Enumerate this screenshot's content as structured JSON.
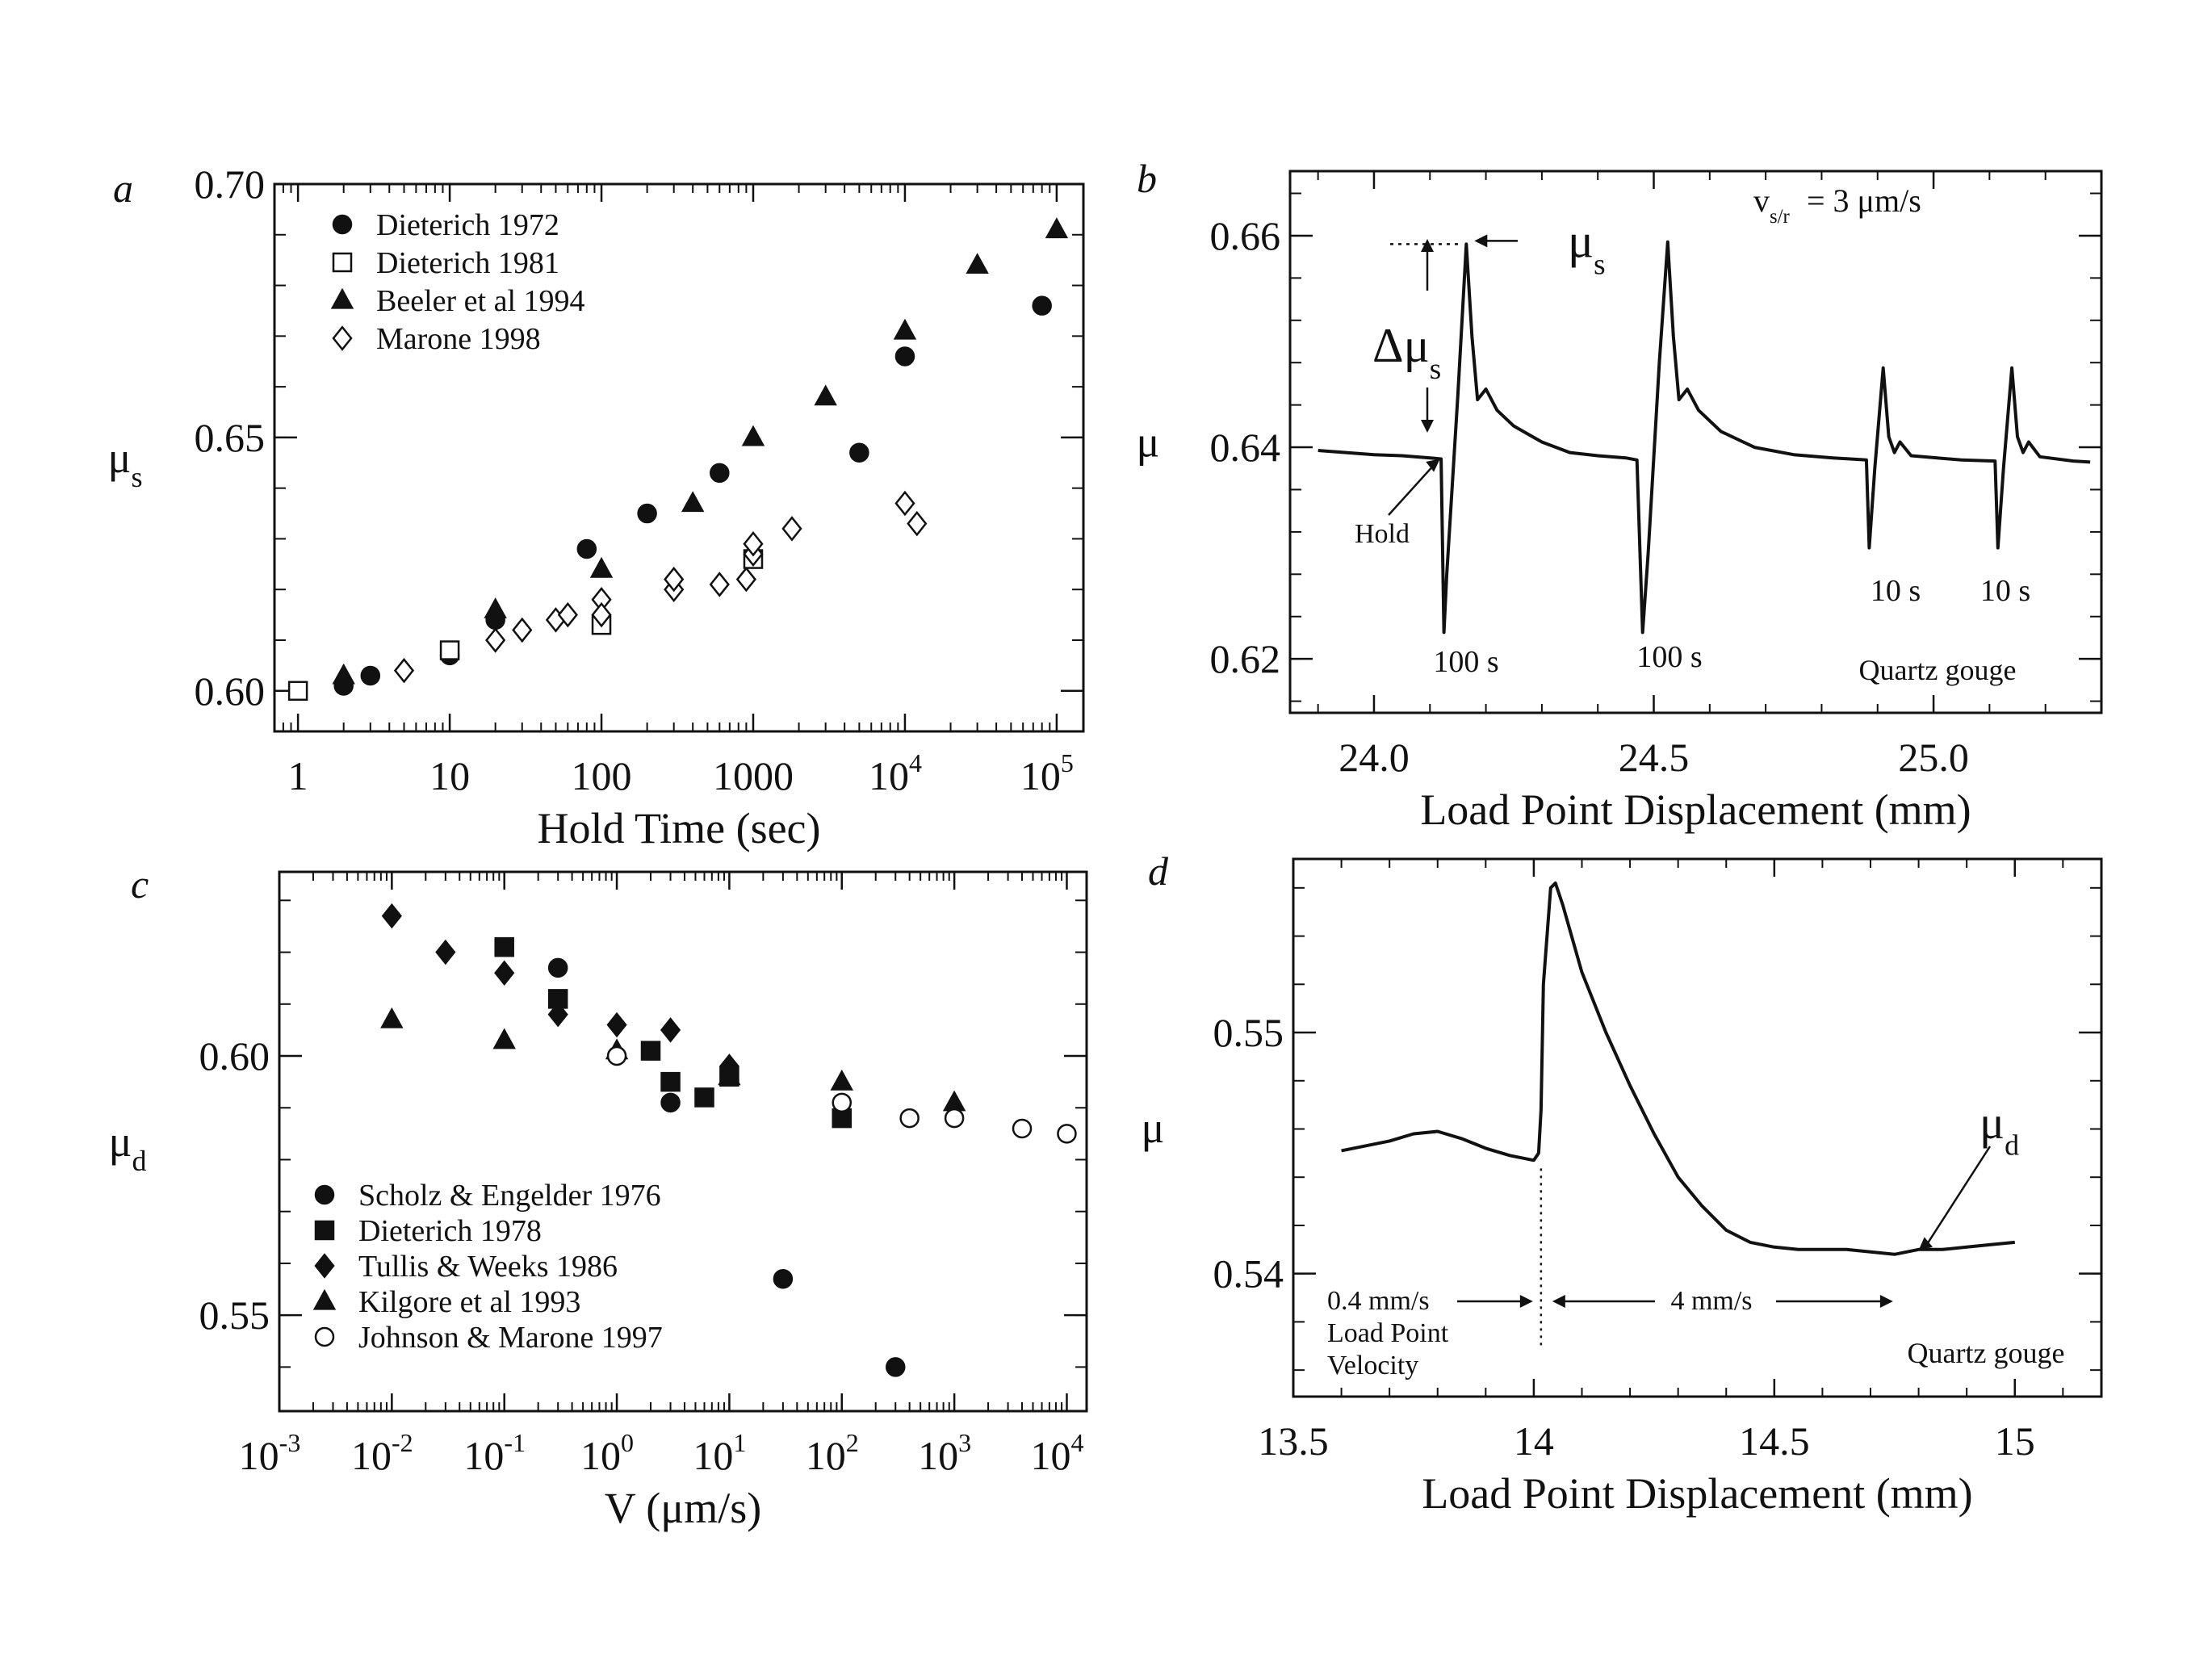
{
  "chart_data": [
    {
      "panel": "a",
      "type": "scatter",
      "xlabel": "Hold Time (sec)",
      "ylabel": "μ",
      "ylabel_sub": "s",
      "xscale": "log",
      "xlim": [
        0.7,
        150000
      ],
      "ylim": [
        0.592,
        0.7
      ],
      "xticks": [
        {
          "v": 1,
          "t": "1"
        },
        {
          "v": 10,
          "t": "10"
        },
        {
          "v": 100,
          "t": "100"
        },
        {
          "v": 1000,
          "t": "1000"
        },
        {
          "v": 10000,
          "t": "10",
          "sup": "4"
        },
        {
          "v": 100000,
          "t": "10",
          "sup": "5"
        }
      ],
      "yticks": [
        {
          "v": 0.6,
          "t": "0.60"
        },
        {
          "v": 0.65,
          "t": "0.65"
        },
        {
          "v": 0.7,
          "t": "0.70"
        }
      ],
      "legend_position": "top-left",
      "series": [
        {
          "name": "Dieterich 1972",
          "marker": "filled-circle",
          "points": [
            [
              2,
              0.601
            ],
            [
              3,
              0.603
            ],
            [
              10,
              0.607
            ],
            [
              20,
              0.614
            ],
            [
              80,
              0.628
            ],
            [
              200,
              0.635
            ],
            [
              600,
              0.643
            ],
            [
              5000,
              0.647
            ],
            [
              10000,
              0.666
            ],
            [
              80000,
              0.676
            ]
          ]
        },
        {
          "name": "Dieterich 1981",
          "marker": "open-square",
          "points": [
            [
              1,
              0.6
            ],
            [
              10,
              0.608
            ],
            [
              100,
              0.613
            ],
            [
              1000,
              0.626
            ]
          ]
        },
        {
          "name": "Beeler et al 1994",
          "marker": "filled-triangle",
          "points": [
            [
              2,
              0.603
            ],
            [
              20,
              0.616
            ],
            [
              100,
              0.624
            ],
            [
              400,
              0.637
            ],
            [
              1000,
              0.65
            ],
            [
              3000,
              0.658
            ],
            [
              10000,
              0.671
            ],
            [
              30000,
              0.684
            ],
            [
              100000,
              0.691
            ]
          ]
        },
        {
          "name": "Marone 1998",
          "marker": "open-diamond",
          "points": [
            [
              5,
              0.604
            ],
            [
              20,
              0.61
            ],
            [
              30,
              0.612
            ],
            [
              50,
              0.614
            ],
            [
              60,
              0.615
            ],
            [
              100,
              0.618
            ],
            [
              100,
              0.615
            ],
            [
              300,
              0.62
            ],
            [
              300,
              0.622
            ],
            [
              600,
              0.621
            ],
            [
              900,
              0.622
            ],
            [
              1000,
              0.627
            ],
            [
              1000,
              0.629
            ],
            [
              1800,
              0.632
            ],
            [
              10000,
              0.637
            ],
            [
              12000,
              0.633
            ]
          ]
        }
      ]
    },
    {
      "panel": "b",
      "type": "line",
      "xlabel": "Load Point Displacement   (mm)",
      "ylabel": "μ",
      "xlim": [
        23.85,
        25.3
      ],
      "ylim": [
        0.6149,
        0.6661
      ],
      "xticks": [
        {
          "v": 24.0,
          "t": "24.0"
        },
        {
          "v": 24.5,
          "t": "24.5"
        },
        {
          "v": 25.0,
          "t": "25.0"
        }
      ],
      "yticks": [
        {
          "v": 0.62,
          "t": "0.62"
        },
        {
          "v": 0.64,
          "t": "0.64"
        },
        {
          "v": 0.66,
          "t": "0.66"
        }
      ],
      "trace": [
        [
          23.9,
          0.6397
        ],
        [
          23.95,
          0.6395
        ],
        [
          24.0,
          0.6393
        ],
        [
          24.05,
          0.6392
        ],
        [
          24.1,
          0.639
        ],
        [
          24.12,
          0.6389
        ],
        [
          24.125,
          0.6225
        ],
        [
          24.13,
          0.628
        ],
        [
          24.15,
          0.645
        ],
        [
          24.165,
          0.6592
        ],
        [
          24.175,
          0.6505
        ],
        [
          24.185,
          0.6445
        ],
        [
          24.2,
          0.6455
        ],
        [
          24.22,
          0.6435
        ],
        [
          24.25,
          0.642
        ],
        [
          24.3,
          0.6405
        ],
        [
          24.35,
          0.6395
        ],
        [
          24.4,
          0.6392
        ],
        [
          24.45,
          0.639
        ],
        [
          24.47,
          0.6388
        ],
        [
          24.48,
          0.6225
        ],
        [
          24.49,
          0.63
        ],
        [
          24.51,
          0.648
        ],
        [
          24.525,
          0.6594
        ],
        [
          24.535,
          0.6505
        ],
        [
          24.545,
          0.6445
        ],
        [
          24.56,
          0.6455
        ],
        [
          24.58,
          0.6435
        ],
        [
          24.62,
          0.6415
        ],
        [
          24.68,
          0.64
        ],
        [
          24.75,
          0.6393
        ],
        [
          24.82,
          0.639
        ],
        [
          24.88,
          0.6388
        ],
        [
          24.885,
          0.6305
        ],
        [
          24.895,
          0.638
        ],
        [
          24.91,
          0.6475
        ],
        [
          24.92,
          0.641
        ],
        [
          24.93,
          0.6395
        ],
        [
          24.94,
          0.6405
        ],
        [
          24.96,
          0.6392
        ],
        [
          25.05,
          0.6388
        ],
        [
          25.11,
          0.6387
        ],
        [
          25.115,
          0.6305
        ],
        [
          25.125,
          0.638
        ],
        [
          25.14,
          0.6475
        ],
        [
          25.15,
          0.641
        ],
        [
          25.16,
          0.6395
        ],
        [
          25.17,
          0.6405
        ],
        [
          25.19,
          0.6391
        ],
        [
          25.25,
          0.6387
        ],
        [
          25.28,
          0.6386
        ]
      ],
      "annotations": [
        "μ",
        "Δμ",
        "Hold",
        "100 s",
        "100 s",
        "10 s",
        "10 s",
        "Quartz gouge",
        "v",
        "= 3 μm/s"
      ],
      "annotation_subs": [
        "s",
        "s",
        "s/r"
      ]
    },
    {
      "panel": "c",
      "type": "scatter",
      "xlabel": "V (μm/s)",
      "ylabel": "μ",
      "ylabel_sub": "d",
      "xscale": "log",
      "xlim": [
        0.001,
        15000
      ],
      "ylim": [
        0.5315,
        0.6355
      ],
      "xticks": [
        {
          "v": 0.001,
          "t": "10",
          "sup": "-3"
        },
        {
          "v": 0.01,
          "t": "10",
          "sup": "-2"
        },
        {
          "v": 0.1,
          "t": "10",
          "sup": "-1"
        },
        {
          "v": 1,
          "t": "10",
          "sup": "0"
        },
        {
          "v": 10,
          "t": "10",
          "sup": "1"
        },
        {
          "v": 100,
          "t": "10",
          "sup": "2"
        },
        {
          "v": 1000,
          "t": "10",
          "sup": "3"
        },
        {
          "v": 10000,
          "t": "10",
          "sup": "4"
        }
      ],
      "yticks": [
        {
          "v": 0.55,
          "t": "0.55"
        },
        {
          "v": 0.6,
          "t": "0.60"
        }
      ],
      "legend_position": "bottom-left",
      "series": [
        {
          "name": "Scholz & Engelder 1976",
          "marker": "filled-circle",
          "points": [
            [
              0.3,
              0.617
            ],
            [
              3,
              0.591
            ],
            [
              30,
              0.557
            ],
            [
              300,
              0.54
            ]
          ]
        },
        {
          "name": "Dieterich 1978",
          "marker": "filled-square",
          "points": [
            [
              0.1,
              0.621
            ],
            [
              0.3,
              0.611
            ],
            [
              2,
              0.601
            ],
            [
              3,
              0.595
            ],
            [
              6,
              0.592
            ],
            [
              10,
              0.596
            ],
            [
              100,
              0.588
            ]
          ]
        },
        {
          "name": "Tullis & Weeks 1986",
          "marker": "filled-diamond",
          "points": [
            [
              0.01,
              0.627
            ],
            [
              0.03,
              0.62
            ],
            [
              0.1,
              0.616
            ],
            [
              0.3,
              0.608
            ],
            [
              1,
              0.606
            ],
            [
              3,
              0.605
            ],
            [
              10,
              0.598
            ]
          ]
        },
        {
          "name": "Kilgore et al 1993",
          "marker": "filled-triangle",
          "points": [
            [
              0.01,
              0.607
            ],
            [
              0.1,
              0.603
            ],
            [
              1,
              0.601
            ],
            [
              10,
              0.596
            ],
            [
              100,
              0.595
            ],
            [
              1000,
              0.591
            ]
          ]
        },
        {
          "name": "Johnson & Marone 1997",
          "marker": "open-circle",
          "points": [
            [
              1,
              0.6
            ],
            [
              100,
              0.591
            ],
            [
              400,
              0.588
            ],
            [
              1000,
              0.588
            ],
            [
              4000,
              0.586
            ],
            [
              10000,
              0.585
            ]
          ]
        }
      ]
    },
    {
      "panel": "d",
      "type": "line",
      "xlabel": "Load Point Displacement  (mm)",
      "ylabel": "μ",
      "xlim": [
        13.5,
        15.18
      ],
      "ylim": [
        0.5349,
        0.5572
      ],
      "xticks": [
        {
          "v": 13.5,
          "t": "13.5"
        },
        {
          "v": 14,
          "t": "14"
        },
        {
          "v": 14.5,
          "t": "14.5"
        },
        {
          "v": 15,
          "t": "15"
        }
      ],
      "yticks": [
        {
          "v": 0.54,
          "t": "0.54"
        },
        {
          "v": 0.55,
          "t": "0.55"
        }
      ],
      "trace": [
        [
          13.6,
          0.5451
        ],
        [
          13.65,
          0.5453
        ],
        [
          13.7,
          0.5455
        ],
        [
          13.75,
          0.5458
        ],
        [
          13.8,
          0.5459
        ],
        [
          13.85,
          0.5456
        ],
        [
          13.9,
          0.5452
        ],
        [
          13.95,
          0.5449
        ],
        [
          14.0,
          0.5447
        ],
        [
          14.01,
          0.545
        ],
        [
          14.015,
          0.5468
        ],
        [
          14.02,
          0.552
        ],
        [
          14.035,
          0.556
        ],
        [
          14.045,
          0.5562
        ],
        [
          14.06,
          0.5553
        ],
        [
          14.1,
          0.5525
        ],
        [
          14.15,
          0.55
        ],
        [
          14.2,
          0.5478
        ],
        [
          14.25,
          0.5458
        ],
        [
          14.3,
          0.544
        ],
        [
          14.35,
          0.5428
        ],
        [
          14.4,
          0.5418
        ],
        [
          14.45,
          0.5413
        ],
        [
          14.5,
          0.5411
        ],
        [
          14.55,
          0.541
        ],
        [
          14.6,
          0.541
        ],
        [
          14.65,
          0.541
        ],
        [
          14.7,
          0.5409
        ],
        [
          14.75,
          0.5408
        ],
        [
          14.8,
          0.541
        ],
        [
          14.85,
          0.541
        ],
        [
          14.9,
          0.5411
        ],
        [
          14.95,
          0.5412
        ],
        [
          15.0,
          0.5413
        ]
      ],
      "annotations": [
        "μ",
        "0.4 mm/s",
        "Load Point",
        "Velocity",
        "4 mm/s",
        "Quartz gouge"
      ],
      "annotation_subs": [
        "d"
      ]
    }
  ],
  "panel_letters": [
    "a",
    "b",
    "c",
    "d"
  ]
}
